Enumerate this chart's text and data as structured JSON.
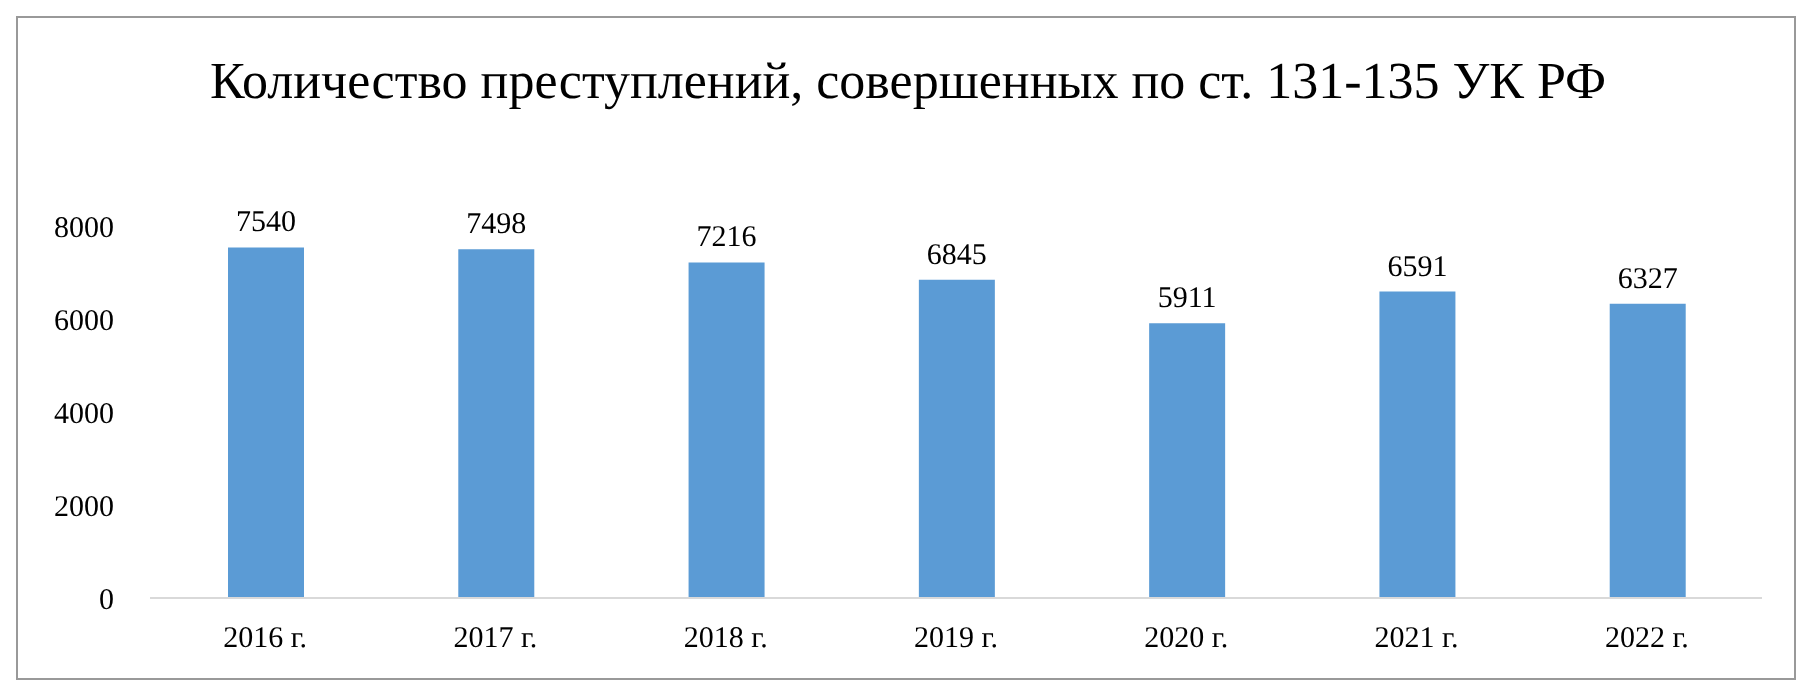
{
  "chart_data": {
    "type": "bar",
    "title": "Количество преступлений, совершенных по ст. 131-135 УК РФ",
    "categories": [
      "2016 г.",
      "2017 г.",
      "2018 г.",
      "2019 г.",
      "2020 г.",
      "2021 г.",
      "2022 г."
    ],
    "values": [
      7540,
      7498,
      7216,
      6845,
      5911,
      6591,
      6327
    ],
    "color": "#5b9bd5",
    "ylim": [
      0,
      8000
    ],
    "yticks": [
      0,
      2000,
      4000,
      6000,
      8000
    ],
    "grid": false,
    "data_labels": true
  }
}
